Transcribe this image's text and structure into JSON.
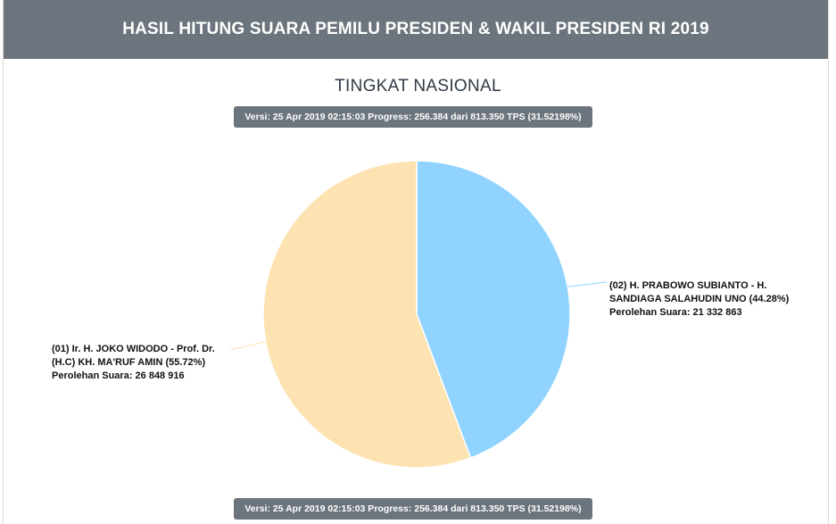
{
  "header": {
    "title": "HASIL HITUNG SUARA PEMILU PRESIDEN & WAKIL PRESIDEN RI 2019"
  },
  "level_title": "TINGKAT NASIONAL",
  "version_text": "Versi: 25 Apr 2019 02:15:03 Progress: 256.384 dari 813.350 TPS (31.52198%)",
  "colors": {
    "header_bg": "#6c757d",
    "slice_01": "#fde3b1",
    "slice_02": "#8fd3fe"
  },
  "chart_data": {
    "type": "pie",
    "title": "TINGKAT NASIONAL",
    "slices": [
      {
        "label_lines": [
          "(02) H. PRABOWO SUBIANTO - H.",
          "SANDIAGA SALAHUDIN UNO (44.28%)"
        ],
        "votes_text": "Perolehan Suara: 21 332 863",
        "value": 21332863,
        "percent": 44.28,
        "color": "#8fd3fe"
      },
      {
        "label_lines": [
          "(01) Ir. H. JOKO WIDODO - Prof. Dr.",
          "(H.C) KH. MA'RUF AMIN (55.72%)"
        ],
        "votes_text": "Perolehan Suara: 26 848 916",
        "value": 26848916,
        "percent": 55.72,
        "color": "#fde3b1"
      }
    ]
  }
}
